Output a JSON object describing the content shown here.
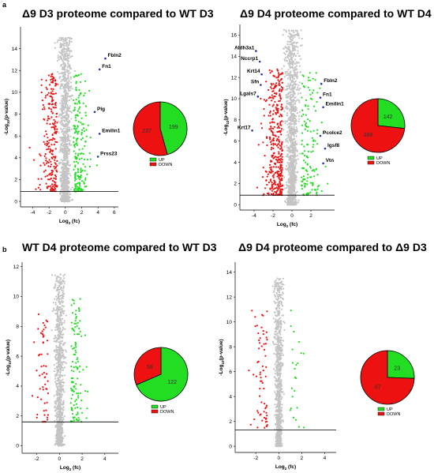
{
  "panel_labels": [
    "a",
    "b"
  ],
  "colors": {
    "up": "#22dd22",
    "down": "#ee1111",
    "ns": "#c4c4c4",
    "gene_dot": "#2233aa"
  },
  "chart_data": [
    {
      "type": "scatter",
      "title": "Δ9 D3 proteome compared to WT D3",
      "xlabel_main": "Log",
      "xlabel_sub": "2",
      "xlabel_tail": "(fc)",
      "ylabel_pre": "-Log",
      "ylabel_sub": "10",
      "ylabel_tail": "(p-value)",
      "xlim": [
        -5.5,
        6.5
      ],
      "ylim": [
        -0.5,
        16
      ],
      "xticks": [
        -4,
        -2,
        0,
        2,
        4,
        6
      ],
      "yticks": [
        0,
        2,
        4,
        6,
        8,
        10,
        12,
        14
      ],
      "threshold_y": 0.9,
      "genes": [
        {
          "name": "Fbln2",
          "x": 4.9,
          "y": 13.1
        },
        {
          "name": "Fn1",
          "x": 4.2,
          "y": 12.1
        },
        {
          "name": "Plg",
          "x": 3.6,
          "y": 8.2
        },
        {
          "name": "Emilin1",
          "x": 4.2,
          "y": 6.2
        },
        {
          "name": "Prss23",
          "x": 4.0,
          "y": 4.1
        }
      ],
      "pie": {
        "up": 199,
        "down": 237
      },
      "legend": [
        "UP",
        "DOWN"
      ]
    },
    {
      "type": "scatter",
      "title": "Δ9 D4 proteome compared to WT D4",
      "xlabel_main": "Log",
      "xlabel_sub": "2",
      "xlabel_tail": "(fc)",
      "ylabel_pre": "-Log",
      "ylabel_sub": "10",
      "ylabel_tail": "(p-value)",
      "xlim": [
        -5.5,
        4.5
      ],
      "ylim": [
        -0.5,
        17
      ],
      "xticks": [
        -4,
        -2,
        0,
        2
      ],
      "yticks": [
        0,
        2,
        4,
        6,
        8,
        10,
        12,
        14,
        16
      ],
      "threshold_y": 0.9,
      "genes": [
        {
          "name": "Aldh3a1",
          "x": -3.8,
          "y": 14.5
        },
        {
          "name": "Nccrp1",
          "x": -3.4,
          "y": 13.5
        },
        {
          "name": "Krt14",
          "x": -3.2,
          "y": 12.3
        },
        {
          "name": "Sfn",
          "x": -3.3,
          "y": 11.3
        },
        {
          "name": "Lgals7",
          "x": -3.6,
          "y": 10.2
        },
        {
          "name": "Krt17",
          "x": -4.2,
          "y": 7.0
        },
        {
          "name": "Fbln2",
          "x": 3.1,
          "y": 11.4
        },
        {
          "name": "Fn1",
          "x": 3.0,
          "y": 10.1
        },
        {
          "name": "Emilin1",
          "x": 3.3,
          "y": 9.2
        },
        {
          "name": "Pcolce2",
          "x": 3.0,
          "y": 6.5
        },
        {
          "name": "Igsf8",
          "x": 3.5,
          "y": 5.3
        },
        {
          "name": "Vtn",
          "x": 3.3,
          "y": 3.9
        }
      ],
      "pie": {
        "up": 142,
        "down": 389
      },
      "legend": [
        "UP",
        "DOWN"
      ]
    },
    {
      "type": "scatter",
      "title": "WT D4 proteome compared to WT D3",
      "xlabel_main": "Log",
      "xlabel_sub": "2",
      "xlabel_tail": "(fc)",
      "ylabel_pre": "-Log",
      "ylabel_sub": "10",
      "ylabel_tail": "(p-value)",
      "xlim": [
        -3.3,
        5.2
      ],
      "ylim": [
        -0.5,
        12.3
      ],
      "xticks": [
        -2,
        0,
        2,
        4
      ],
      "yticks": [
        0,
        2,
        4,
        6,
        8,
        10,
        12
      ],
      "threshold_y": 1.6,
      "genes": [],
      "pie": {
        "up": 122,
        "down": 56
      },
      "legend": [
        "UP",
        "DOWN"
      ]
    },
    {
      "type": "scatter",
      "title": "Δ9 D4 proteome compared to Δ9 D3",
      "xlabel_main": "Log",
      "xlabel_sub": "2",
      "xlabel_tail": "(fc)",
      "ylabel_pre": "-Log",
      "ylabel_sub": "10",
      "ylabel_tail": "(p-value)",
      "xlim": [
        -3.8,
        5.0
      ],
      "ylim": [
        -0.5,
        14.8
      ],
      "xticks": [
        -2,
        0,
        2,
        4
      ],
      "yticks": [
        0,
        2,
        4,
        6,
        8,
        10,
        12,
        14
      ],
      "threshold_y": 1.3,
      "genes": [],
      "pie": {
        "up": 23,
        "down": 67
      },
      "legend": [
        "UP",
        "DOWN"
      ]
    }
  ]
}
